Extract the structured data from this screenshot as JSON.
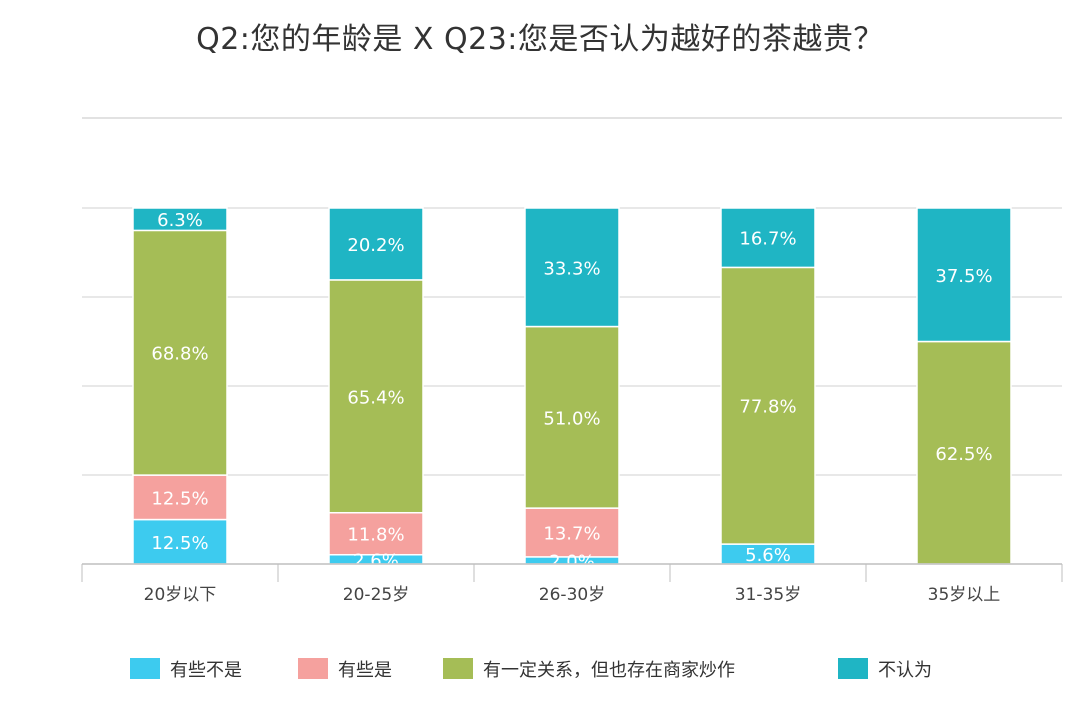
{
  "chart_data": {
    "type": "bar",
    "stacked": true,
    "normalized": true,
    "title": "Q2:您的年龄是 X Q23:您是否认为越好的茶越贵？",
    "categories": [
      "20岁以下",
      "20-25岁",
      "26-30岁",
      "31-35岁",
      "35岁以上"
    ],
    "series": [
      {
        "name": "有些不是",
        "color": "#3dcbef",
        "values": [
          12.5,
          2.6,
          2.0,
          5.6,
          0
        ],
        "labels": [
          "12.5%",
          "2.6%",
          "2.0%",
          "5.6%",
          ""
        ]
      },
      {
        "name": "有些是",
        "color": "#f5a19e",
        "values": [
          12.5,
          11.8,
          13.7,
          0,
          0
        ],
        "labels": [
          "12.5%",
          "11.8%",
          "13.7%",
          "",
          ""
        ]
      },
      {
        "name": "有一定关系，但也存在商家炒作",
        "color": "#a5bd56",
        "values": [
          68.8,
          65.4,
          51.0,
          77.8,
          62.5
        ],
        "labels": [
          "68.8%",
          "65.4%",
          "51.0%",
          "77.8%",
          "62.5%"
        ]
      },
      {
        "name": "不认为",
        "color": "#1fb5c4",
        "values": [
          6.3,
          20.2,
          33.3,
          16.7,
          37.5
        ],
        "labels": [
          "6.3%",
          "20.2%",
          "33.3%",
          "16.7%",
          "37.5%"
        ]
      }
    ],
    "ylim": [
      0,
      100
    ],
    "grid": true,
    "legend_position": "bottom"
  }
}
